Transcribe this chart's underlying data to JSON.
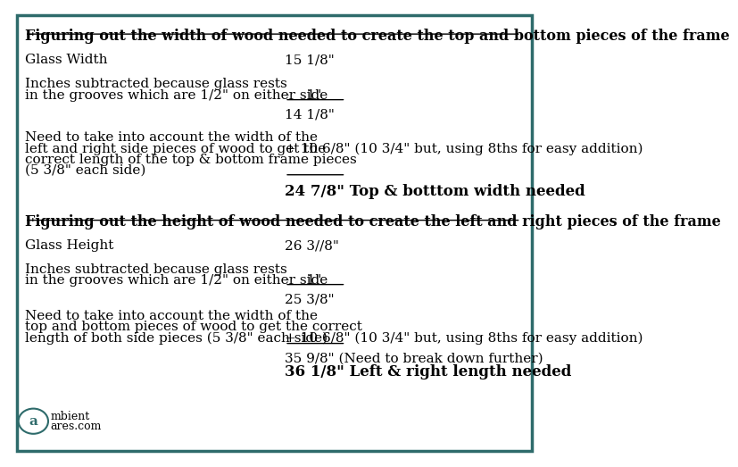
{
  "bg_color": "#ffffff",
  "border_color": "#2e6b6b",
  "border_linewidth": 2.5,
  "font_family": "serif",
  "font_color": "#000000",
  "section1_title": "Figuring out the width of wood needed to create the top and bottom pieces of the frame",
  "section2_title": "Figuring out the height of wood needed to create the left and right pieces of the frame",
  "s1_label1": "Glass Width",
  "s1_val1": "15 1/8\"",
  "s1_label2a": "Inches subtracted because glass rests",
  "s1_label2b": "in the grooves which are 1/2\" on either side",
  "s1_val2": "-    1\"",
  "s1_val3": "14 1/8\"",
  "s1_label3a": "Need to take into account the width of the",
  "s1_label3b": "left and right side pieces of wood to get the",
  "s1_label3c": "correct length of the top & bottom frame pieces",
  "s1_label3d": "(5 3/8\" each side)",
  "s1_val4": "+ 10 6/8\" (10 3/4\" but, using 8ths for easy addition)",
  "s1_val5": "24 7/8\" Top & botttom width needed",
  "s2_label1": "Glass Height",
  "s2_val1": "26 3//8\"",
  "s2_label2a": "Inches subtracted because glass rests",
  "s2_label2b": "in the grooves which are 1/2\" on either side",
  "s2_val2": "-    1\"",
  "s2_val3": "25 3/8\"",
  "s2_label3a": "Need to take into account the width of the",
  "s2_label3b": "top and bottom pieces of wood to get the correct",
  "s2_label3c": "length of both side pieces (5 3/8\" each side)",
  "s2_val4": "+ 10 6/8\" (10 3/4\" but, using 8ths for easy addition)",
  "s2_val5a": "35 9/8\" (Need to break down further)",
  "s2_val5b": "36 1/8\" Left & right length needed",
  "title_fontsize": 11.5,
  "body_fontsize": 11,
  "result_fontsize": 12
}
